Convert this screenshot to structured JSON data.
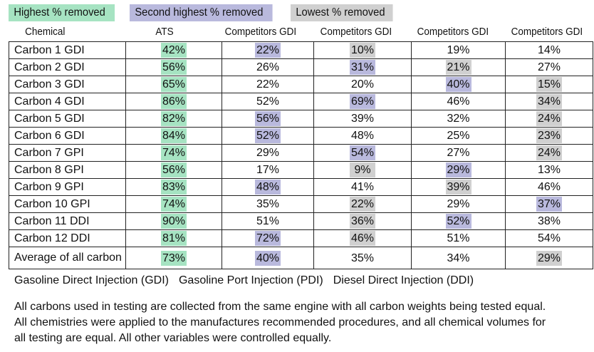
{
  "legend": {
    "highest": "Highest % removed",
    "second": "Second highest % removed",
    "lowest": "Lowest % removed",
    "colors": {
      "highest": "#a6e3c2",
      "second": "#b9b9dd",
      "lowest": "#d0d0d0"
    }
  },
  "headers": [
    "Chemical",
    "ATS",
    "Competitors GDI",
    "Competitors GDI",
    "Competitors GDI",
    "Competitors GDI"
  ],
  "rows": [
    {
      "name": "Carbon 1 GDI",
      "values": [
        "42%",
        "22%",
        "10%",
        "19%",
        "14%"
      ],
      "marks": [
        "hi",
        "sec",
        "low",
        "",
        ""
      ]
    },
    {
      "name": "Carbon 2 GDI",
      "values": [
        "56%",
        "26%",
        "31%",
        "21%",
        "27%"
      ],
      "marks": [
        "hi",
        "",
        "sec",
        "low",
        ""
      ]
    },
    {
      "name": "Carbon 3 GDI",
      "values": [
        "65%",
        "22%",
        "20%",
        "40%",
        "15%"
      ],
      "marks": [
        "hi",
        "",
        "",
        "sec",
        "low"
      ]
    },
    {
      "name": "Carbon 4 GDI",
      "values": [
        "86%",
        "52%",
        "69%",
        "46%",
        "34%"
      ],
      "marks": [
        "hi",
        "",
        "sec",
        "",
        "low"
      ]
    },
    {
      "name": "Carbon 5 GDI",
      "values": [
        "82%",
        "56%",
        "39%",
        "32%",
        "24%"
      ],
      "marks": [
        "hi",
        "sec",
        "",
        "",
        "low"
      ]
    },
    {
      "name": "Carbon 6 GDI",
      "values": [
        "84%",
        "52%",
        "48%",
        "25%",
        "23%"
      ],
      "marks": [
        "hi",
        "sec",
        "",
        "",
        "low"
      ]
    },
    {
      "name": "Carbon 7 GPI",
      "values": [
        "74%",
        "29%",
        "54%",
        "27%",
        "24%"
      ],
      "marks": [
        "hi",
        "",
        "sec",
        "",
        "low"
      ]
    },
    {
      "name": "Carbon 8 GPI",
      "values": [
        "56%",
        "17%",
        "9%",
        "29%",
        "13%"
      ],
      "marks": [
        "hi",
        "",
        "low",
        "sec",
        ""
      ]
    },
    {
      "name": "Carbon 9 GPI",
      "values": [
        "83%",
        "48%",
        "41%",
        "39%",
        "46%"
      ],
      "marks": [
        "hi",
        "sec",
        "",
        "low",
        ""
      ]
    },
    {
      "name": "Carbon 10 GPI",
      "values": [
        "74%",
        "35%",
        "22%",
        "29%",
        "37%"
      ],
      "marks": [
        "hi",
        "",
        "low",
        "",
        "sec"
      ]
    },
    {
      "name": "Carbon 11 DDI",
      "values": [
        "90%",
        "51%",
        "36%",
        "52%",
        "38%"
      ],
      "marks": [
        "hi",
        "",
        "low",
        "sec",
        ""
      ]
    },
    {
      "name": "Carbon 12 DDI",
      "values": [
        "81%",
        "72%",
        "46%",
        "51%",
        "54%"
      ],
      "marks": [
        "hi",
        "sec",
        "low",
        "",
        ""
      ]
    }
  ],
  "average": {
    "name": "Average of all carbon",
    "values": [
      "73%",
      "40%",
      "35%",
      "34%",
      "29%"
    ],
    "marks": [
      "hi",
      "sec",
      "",
      "",
      "low"
    ]
  },
  "injection_types": [
    "Gasoline Direct Injection (GDI)",
    "Gasoline Port Injection (PDI)",
    "Diesel Direct Injection (DDI)"
  ],
  "notes": [
    "All carbons used in testing are collected from the same engine with all carbon weights being tested equal.",
    "All chemistries were applied to the manufactures recommended procedures, and all chemical volumes for",
    "all testing are equal. All other variables were controlled equally."
  ]
}
